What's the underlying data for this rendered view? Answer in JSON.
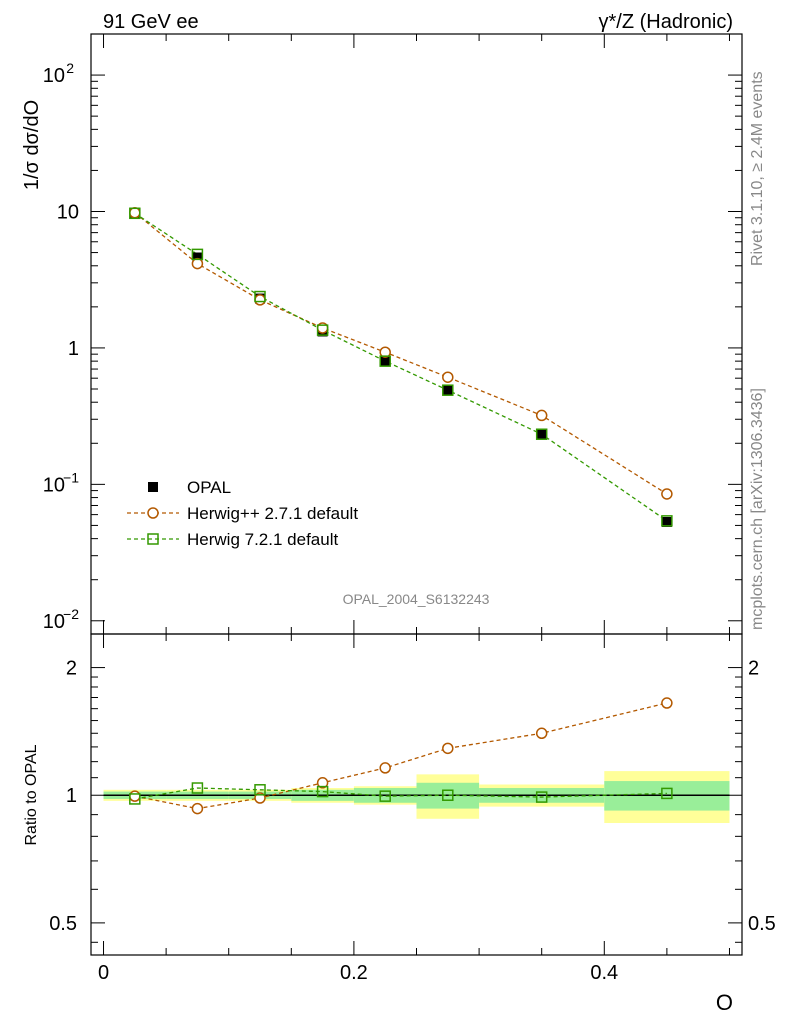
{
  "header": {
    "left_title": "91 GeV ee",
    "right_title": "γ*/Z (Hadronic)"
  },
  "side_text": {
    "rivet": "Rivet 3.1.10, ≥ 2.4M events",
    "mcplots": "mcplots.cern.ch [arXiv:1306.3436]"
  },
  "watermark": "OPAL_2004_S6132243",
  "main_plot": {
    "ylabel": "1/σ dσ/dO",
    "yticks": [
      {
        "value": 0.01,
        "base": "10",
        "exp": "−2"
      },
      {
        "value": 0.1,
        "base": "10",
        "exp": "−1"
      },
      {
        "value": 1,
        "base": "1",
        "exp": ""
      },
      {
        "value": 10,
        "base": "10",
        "exp": ""
      },
      {
        "value": 100,
        "base": "10",
        "exp": "2"
      }
    ]
  },
  "ratio_plot": {
    "ylabel": "Ratio to OPAL",
    "ytick_labels": [
      "2",
      "1",
      "0.5"
    ],
    "right_tick_labels": [
      "2",
      "0.5"
    ]
  },
  "x_axis": {
    "label": "O",
    "tick_labels": [
      "0",
      "0.2",
      "0.4"
    ]
  },
  "legend": [
    {
      "name": "OPAL",
      "marker": "filled-square"
    },
    {
      "name": "Herwig++ 2.7.1 default",
      "marker": "open-circle"
    },
    {
      "name": "Herwig 7.2.1 default",
      "marker": "open-square"
    }
  ],
  "colors": {
    "data": "#000000",
    "herwigpp": "#b35900",
    "herwig7": "#339900",
    "band_inner": "#99ee99",
    "band_outer": "#ffff99"
  },
  "chart_data": [
    {
      "type": "line",
      "title": "γ*/Z (Hadronic)",
      "xlabel": "O",
      "ylabel": "1/σ dσ/dO",
      "yscale": "log",
      "xlim": [
        -0.01,
        0.51
      ],
      "ylim": [
        0.008,
        200
      ],
      "series": [
        {
          "name": "OPAL",
          "x": [
            0.025,
            0.075,
            0.125,
            0.175,
            0.225,
            0.275,
            0.35,
            0.45
          ],
          "values": [
            9.8,
            4.6,
            2.3,
            1.32,
            0.8,
            0.49,
            0.235,
            0.053
          ]
        },
        {
          "name": "Herwig++ 2.7.1 default",
          "x": [
            0.025,
            0.075,
            0.125,
            0.175,
            0.225,
            0.275,
            0.35,
            0.45
          ],
          "values": [
            9.8,
            4.15,
            2.25,
            1.4,
            0.93,
            0.61,
            0.32,
            0.085
          ]
        },
        {
          "name": "Herwig 7.2.1 default",
          "x": [
            0.025,
            0.075,
            0.125,
            0.175,
            0.225,
            0.275,
            0.35,
            0.45
          ],
          "values": [
            9.7,
            4.85,
            2.38,
            1.35,
            0.8,
            0.49,
            0.233,
            0.054
          ]
        }
      ]
    },
    {
      "type": "line",
      "title": "Ratio to OPAL",
      "xlabel": "O",
      "ylabel": "Ratio to OPAL",
      "yscale": "log",
      "xlim": [
        -0.01,
        0.51
      ],
      "ylim": [
        0.42,
        2.4
      ],
      "bins": [
        [
          0.0,
          0.05
        ],
        [
          0.05,
          0.1
        ],
        [
          0.1,
          0.15
        ],
        [
          0.15,
          0.2
        ],
        [
          0.2,
          0.25
        ],
        [
          0.25,
          0.3
        ],
        [
          0.3,
          0.4
        ],
        [
          0.4,
          0.5
        ]
      ],
      "uncertainty_inner": [
        0.02,
        0.02,
        0.02,
        0.03,
        0.04,
        0.07,
        0.04,
        0.08
      ],
      "uncertainty_outer": [
        0.03,
        0.03,
        0.03,
        0.04,
        0.05,
        0.12,
        0.06,
        0.14
      ],
      "series": [
        {
          "name": "Herwig++ 2.7.1 default",
          "x": [
            0.025,
            0.075,
            0.125,
            0.175,
            0.225,
            0.275,
            0.35,
            0.45
          ],
          "values": [
            0.995,
            0.93,
            0.985,
            1.07,
            1.16,
            1.29,
            1.4,
            1.65
          ]
        },
        {
          "name": "Herwig 7.2.1 default",
          "x": [
            0.025,
            0.075,
            0.125,
            0.175,
            0.225,
            0.275,
            0.35,
            0.45
          ],
          "values": [
            0.98,
            1.04,
            1.03,
            1.02,
            0.995,
            1.0,
            0.99,
            1.01
          ]
        }
      ]
    }
  ]
}
